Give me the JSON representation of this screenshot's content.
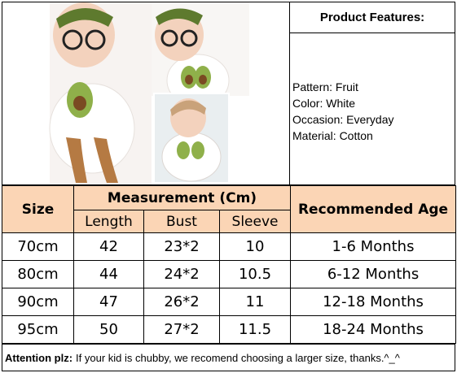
{
  "features": {
    "title": "Product Features:",
    "items": [
      "Pattern: Fruit",
      "Color: White",
      "Occasion: Everyday",
      "Material: Cotton"
    ]
  },
  "table": {
    "size_header": "Size",
    "measurement_header": "Measurement (Cm)",
    "age_header": "Recommended Age",
    "sub_headers": [
      "Length",
      "Bust",
      "Sleeve"
    ],
    "rows": [
      {
        "size": "70cm",
        "length": "42",
        "bust": "23*2",
        "sleeve": "10",
        "age": "1-6 Months"
      },
      {
        "size": "80cm",
        "length": "44",
        "bust": "24*2",
        "sleeve": "10.5",
        "age": "6-12 Months"
      },
      {
        "size": "90cm",
        "length": "47",
        "bust": "26*2",
        "sleeve": "11",
        "age": "12-18 Months"
      },
      {
        "size": "95cm",
        "length": "50",
        "bust": "27*2",
        "sleeve": "11.5",
        "age": "18-24 Months"
      }
    ]
  },
  "note": {
    "label": "Attention plz:",
    "text": "If your kid is chubby, we recomend choosing a larger size, thanks.^_^"
  },
  "colors": {
    "header_fill": "#fbd5b5",
    "headband": "#5e7a2e",
    "avocado": "#8fb04a",
    "avocado_pit": "#7a4a22",
    "sandal": "#b57a43"
  }
}
